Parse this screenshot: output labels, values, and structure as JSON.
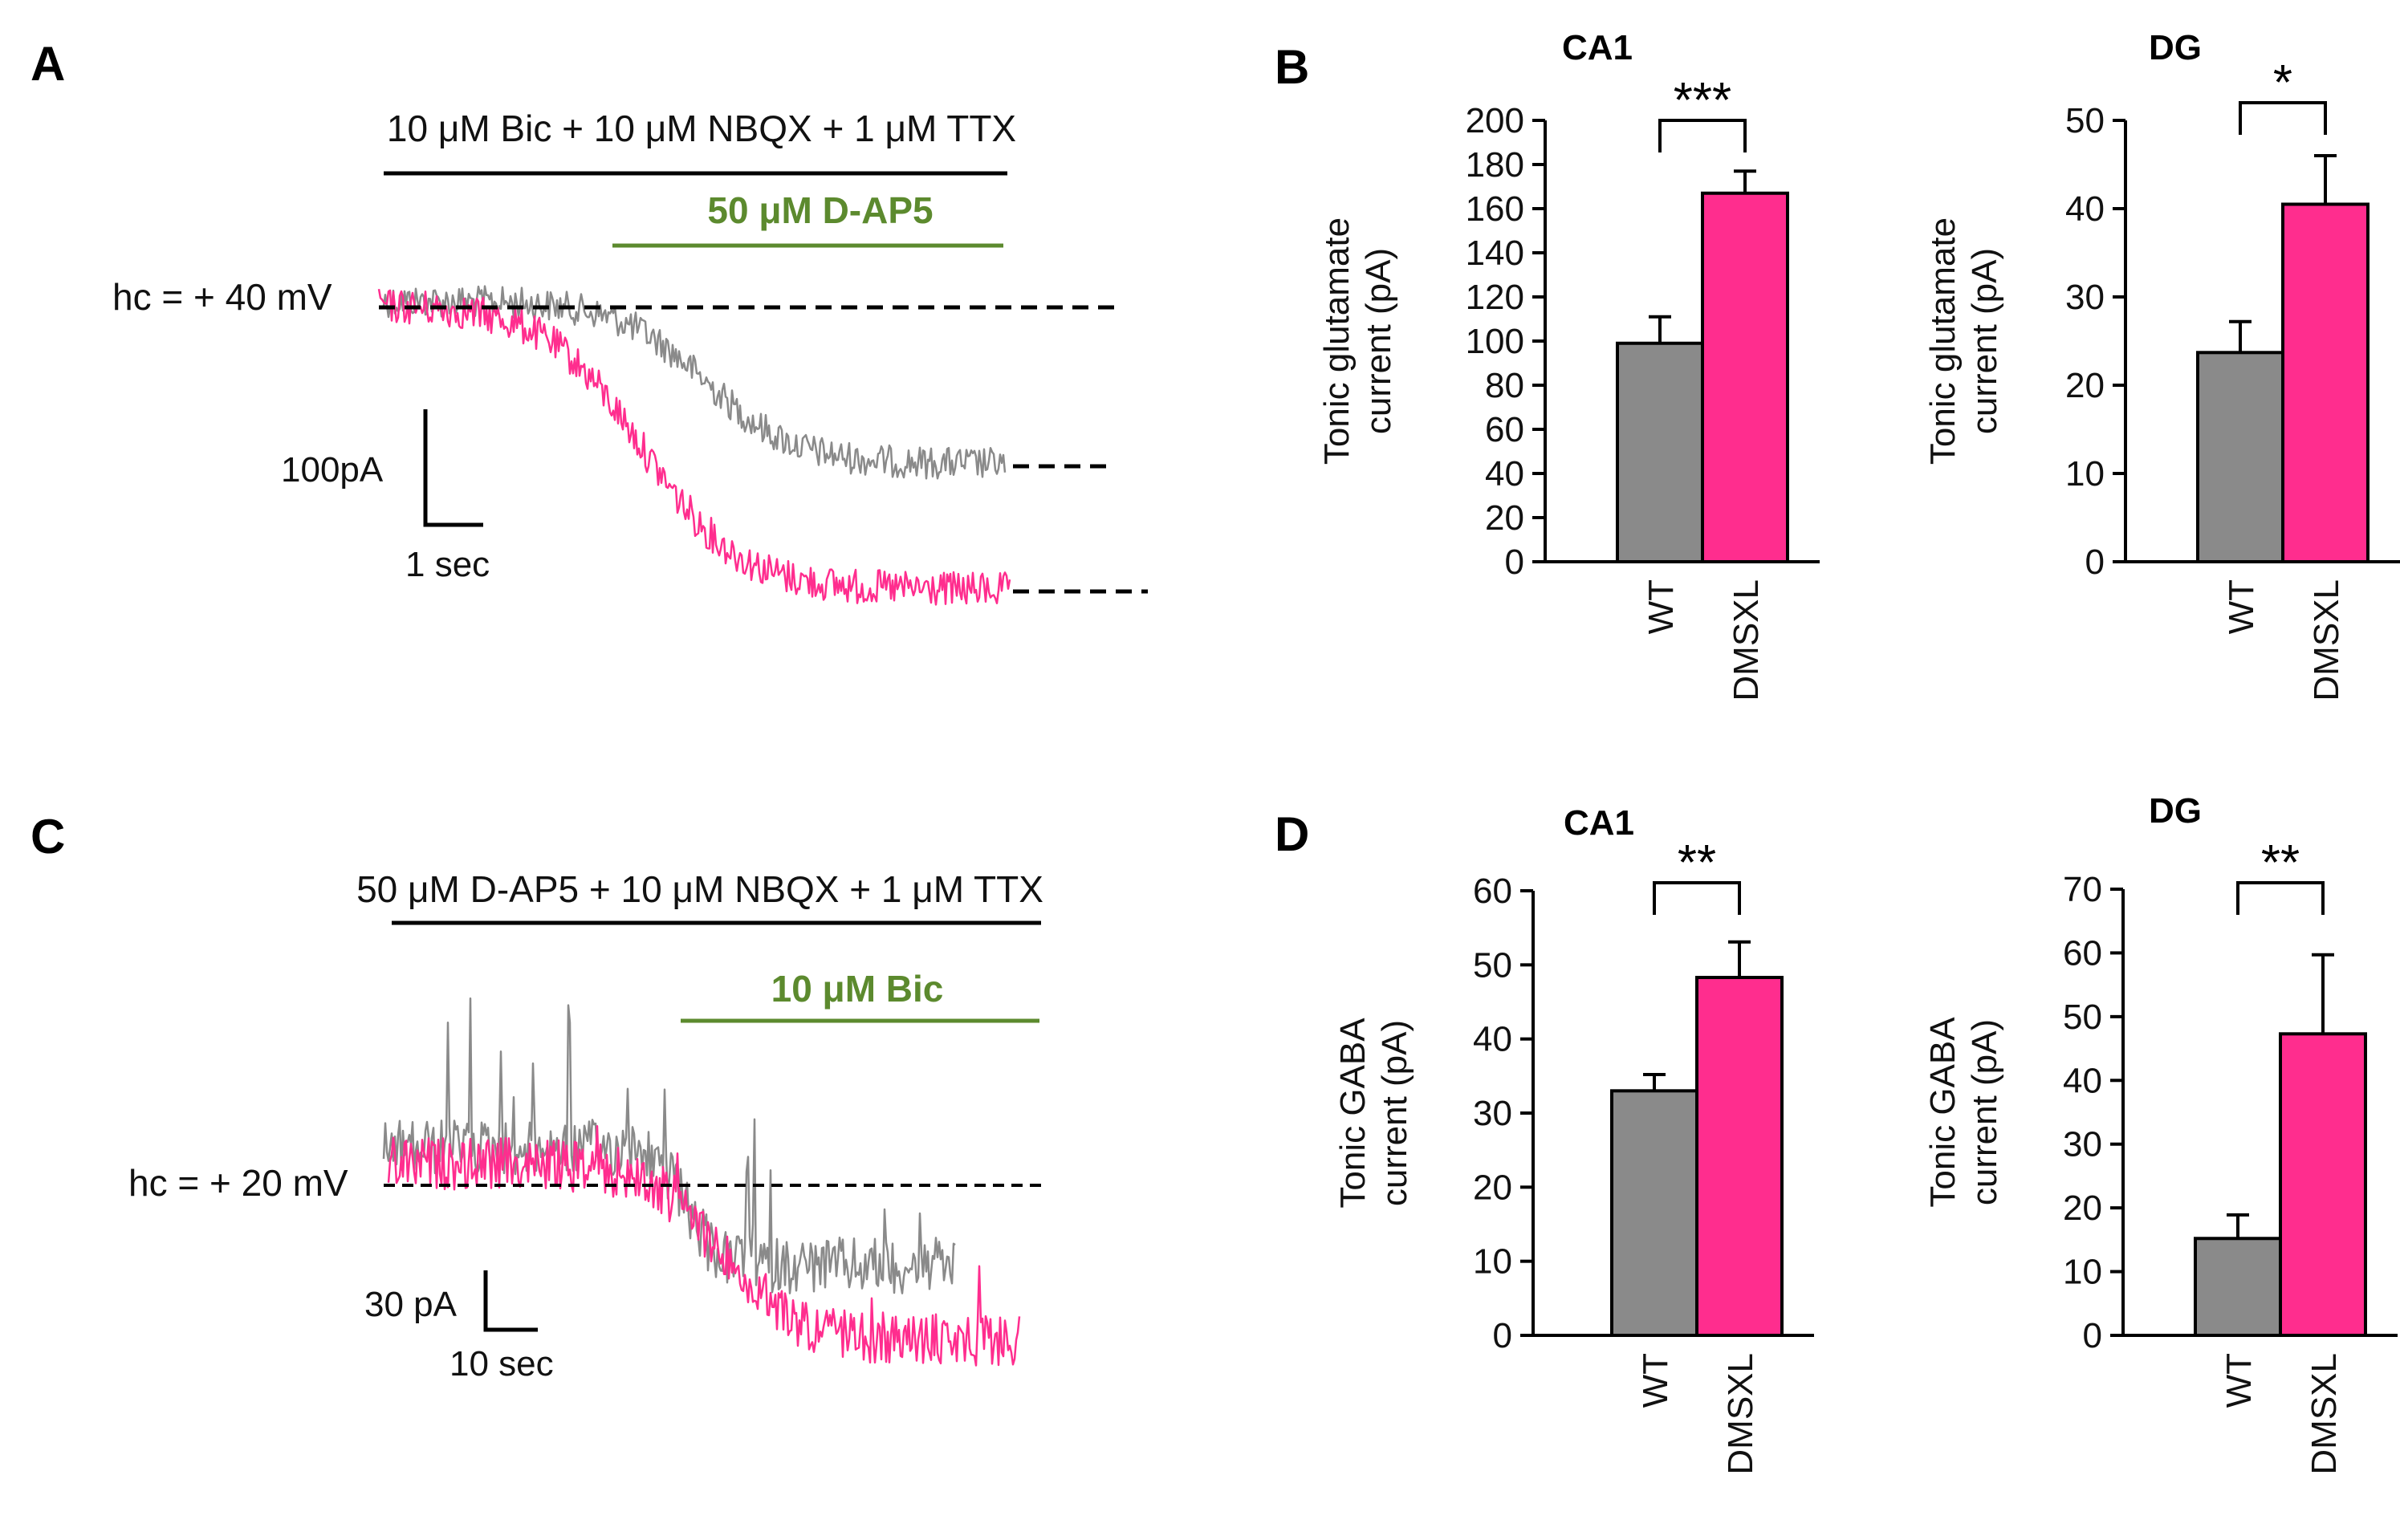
{
  "colors": {
    "wt": "#8a8a8a",
    "dmsxl": "#ff2d8e",
    "drug_green": "#5c8a2e",
    "axis": "#000000"
  },
  "panel_labels": {
    "a": "A",
    "b": "B",
    "c": "C",
    "d": "D"
  },
  "panel_a": {
    "drug_bar_label": "10 μM Bic + 10 μM NBQX + 1 μM TTX",
    "antagonist_label": "50 μM D-AP5",
    "holding_label": "hc = + 40 mV",
    "scale_y_label": "100pA",
    "scale_x_label": "1 sec"
  },
  "panel_c": {
    "drug_bar_label": "50 μM D-AP5 + 10 μM NBQX + 1 μM TTX",
    "antagonist_label": "10 μM Bic",
    "holding_label": "hc = + 20 mV",
    "scale_y_label": "30 pA",
    "scale_x_label": "10 sec"
  },
  "chart_data": [
    {
      "type": "bar",
      "panel": "B",
      "title": "CA1",
      "categories": [
        "WT",
        "DMSXL"
      ],
      "values": [
        99,
        167
      ],
      "errors": [
        12,
        10
      ],
      "ylabel_lines": [
        "Tonic glutamate",
        "current (pA)"
      ],
      "ylim": [
        0,
        200
      ],
      "yticks": [
        "0",
        "20",
        "40",
        "60",
        "80",
        "100",
        "120",
        "140",
        "160",
        "180",
        "200"
      ],
      "significance": "***"
    },
    {
      "type": "bar",
      "panel": "B",
      "title": "DG",
      "categories": [
        "WT",
        "DMSXL"
      ],
      "values": [
        23.7,
        40.5
      ],
      "errors": [
        3.5,
        5.5
      ],
      "ylabel_lines": [
        "Tonic glutamate",
        "current (pA)"
      ],
      "ylim": [
        0,
        50
      ],
      "yticks": [
        "0",
        "10",
        "20",
        "30",
        "40",
        "50"
      ],
      "significance": "*"
    },
    {
      "type": "bar",
      "panel": "D",
      "title": "CA1",
      "categories": [
        "WT",
        "DMSXL"
      ],
      "values": [
        33,
        48.3
      ],
      "errors": [
        2.2,
        4.8
      ],
      "ylabel_lines": [
        "Tonic GABA",
        "current (pA)"
      ],
      "ylim": [
        0,
        60
      ],
      "yticks": [
        "0",
        "10",
        "20",
        "30",
        "40",
        "50",
        "60"
      ],
      "significance": "**"
    },
    {
      "type": "bar",
      "panel": "D",
      "title": "DG",
      "categories": [
        "WT",
        "DMSXL"
      ],
      "values": [
        15.2,
        47.3
      ],
      "errors": [
        3.7,
        12.4
      ],
      "ylabel_lines": [
        "Tonic GABA",
        "current (pA)"
      ],
      "ylim": [
        0,
        70
      ],
      "yticks": [
        "0",
        "10",
        "20",
        "30",
        "40",
        "50",
        "60",
        "70"
      ],
      "significance": "**"
    }
  ]
}
